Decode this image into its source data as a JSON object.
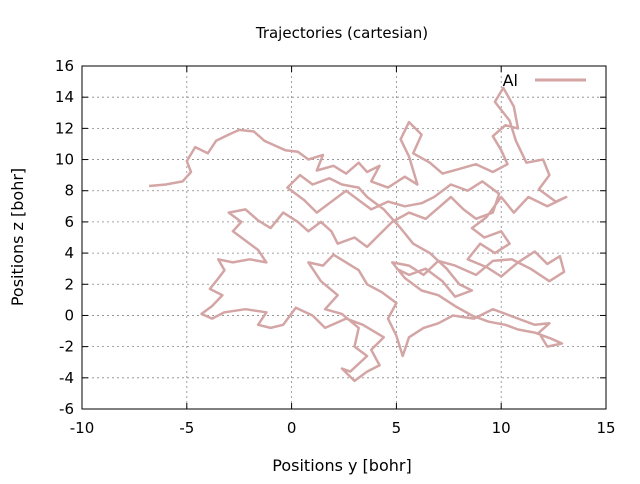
{
  "chart_data": {
    "type": "line",
    "title": "Trajectories (cartesian)",
    "xlabel": "Positions y [bohr]",
    "ylabel": "Positions z [bohr]",
    "xlim": [
      -10,
      15
    ],
    "ylim": [
      -6,
      16
    ],
    "xticks": [
      -10,
      -5,
      0,
      5,
      10,
      15
    ],
    "yticks": [
      -6,
      -4,
      -2,
      0,
      2,
      4,
      6,
      8,
      10,
      12,
      14,
      16
    ],
    "grid": true,
    "legend_position": "top-right",
    "series": [
      {
        "name": "Al",
        "color": "#d4a5a5",
        "points": [
          [
            -6.8,
            8.3
          ],
          [
            -6,
            8.4
          ],
          [
            -5.2,
            8.6
          ],
          [
            -4.8,
            9.2
          ],
          [
            -5,
            9.9
          ],
          [
            -4.6,
            10.8
          ],
          [
            -4,
            10.4
          ],
          [
            -3.6,
            11.2
          ],
          [
            -3,
            11.6
          ],
          [
            -2.5,
            11.9
          ],
          [
            -1.8,
            11.8
          ],
          [
            -1.3,
            11.2
          ],
          [
            -0.8,
            10.9
          ],
          [
            -0.3,
            10.6
          ],
          [
            0.3,
            10.5
          ],
          [
            0.8,
            10
          ],
          [
            1.5,
            10.3
          ],
          [
            1.2,
            9.3
          ],
          [
            2,
            9.6
          ],
          [
            2.6,
            9.1
          ],
          [
            3.2,
            9.8
          ],
          [
            3.6,
            9.2
          ],
          [
            4.2,
            9.6
          ],
          [
            3.8,
            8.6
          ],
          [
            4.6,
            8.2
          ],
          [
            5.4,
            8.9
          ],
          [
            6,
            8.4
          ],
          [
            5.6,
            10.2
          ],
          [
            5.2,
            11.3
          ],
          [
            5.6,
            12.4
          ],
          [
            6.2,
            11.6
          ],
          [
            5.8,
            10.4
          ],
          [
            6.6,
            9.8
          ],
          [
            7.2,
            9.1
          ],
          [
            8,
            9.4
          ],
          [
            8.8,
            9.7
          ],
          [
            9.6,
            9.2
          ],
          [
            10.3,
            9.7
          ],
          [
            10,
            10.6
          ],
          [
            9.6,
            11.5
          ],
          [
            10.2,
            12.2
          ],
          [
            10.8,
            12
          ],
          [
            10.6,
            13.4
          ],
          [
            10.1,
            14.6
          ],
          [
            9.7,
            13.7
          ],
          [
            10.4,
            12.5
          ],
          [
            10.7,
            11.2
          ],
          [
            11.2,
            9.8
          ],
          [
            12,
            10
          ],
          [
            12.3,
            9
          ],
          [
            11.8,
            8.1
          ],
          [
            12.6,
            7.3
          ],
          [
            13.1,
            7.6
          ],
          [
            12.2,
            7
          ],
          [
            11.3,
            7.6
          ],
          [
            10.6,
            6.6
          ],
          [
            10,
            7.6
          ],
          [
            9.3,
            6.3
          ],
          [
            8.6,
            5.6
          ],
          [
            9.2,
            5
          ],
          [
            10,
            5.4
          ],
          [
            10.4,
            4.6
          ],
          [
            9.7,
            4
          ],
          [
            9,
            4.6
          ],
          [
            8.4,
            3.6
          ],
          [
            9.3,
            3.1
          ],
          [
            10,
            2.5
          ],
          [
            10.8,
            3.4
          ],
          [
            11.6,
            4.1
          ],
          [
            12.2,
            3.3
          ],
          [
            12.8,
            3.8
          ],
          [
            13,
            2.8
          ],
          [
            12.3,
            2.2
          ],
          [
            11.4,
            3
          ],
          [
            10.5,
            3.6
          ],
          [
            9.6,
            3.5
          ],
          [
            8.8,
            2.6
          ],
          [
            7.8,
            3.2
          ],
          [
            7,
            3.5
          ],
          [
            6.3,
            2.6
          ],
          [
            5.6,
            3.2
          ],
          [
            4.8,
            3.4
          ],
          [
            5.4,
            2.4
          ],
          [
            6.2,
            1.6
          ],
          [
            7,
            1.3
          ],
          [
            7.8,
            0.6
          ],
          [
            8.6,
            0
          ],
          [
            9.4,
            -0.4
          ],
          [
            10.2,
            -0.6
          ],
          [
            10.8,
            -0.9
          ],
          [
            11.6,
            -1.1
          ],
          [
            12.4,
            -1.5
          ],
          [
            12.9,
            -1.8
          ],
          [
            12.2,
            -2
          ],
          [
            11.8,
            -1.1
          ],
          [
            12.3,
            -0.5
          ],
          [
            11.6,
            -0.6
          ],
          [
            10.6,
            -0.1
          ],
          [
            9.6,
            0.4
          ],
          [
            8.7,
            -0.2
          ],
          [
            7.7,
            0
          ],
          [
            7,
            -0.5
          ],
          [
            6.3,
            -0.8
          ],
          [
            5.6,
            -1.4
          ],
          [
            5.3,
            -2.6
          ],
          [
            5,
            -1.3
          ],
          [
            4.6,
            -0.2
          ],
          [
            5,
            0.8
          ],
          [
            4.3,
            1.5
          ],
          [
            3.6,
            2
          ],
          [
            3.2,
            2.9
          ],
          [
            2.6,
            3.4
          ],
          [
            2,
            3.9
          ],
          [
            1.5,
            3.2
          ],
          [
            0.8,
            3.4
          ],
          [
            1.4,
            2.2
          ],
          [
            2.2,
            1.3
          ],
          [
            1.6,
            0.4
          ],
          [
            2.4,
            0.1
          ],
          [
            3.2,
            -0.8
          ],
          [
            3,
            -2
          ],
          [
            3.6,
            -2.6
          ],
          [
            2.8,
            -3.6
          ],
          [
            2.4,
            -3.4
          ],
          [
            3,
            -4.2
          ],
          [
            3.6,
            -3.6
          ],
          [
            4.2,
            -3.2
          ],
          [
            3.8,
            -2.2
          ],
          [
            4.4,
            -1.4
          ],
          [
            3.4,
            -0.6
          ],
          [
            2.6,
            -0.2
          ],
          [
            1.6,
            -0.8
          ],
          [
            1,
            0
          ],
          [
            0.2,
            0.5
          ],
          [
            -0.4,
            -0.6
          ],
          [
            -1,
            -0.8
          ],
          [
            -1.6,
            -0.6
          ],
          [
            -1.2,
            0.2
          ],
          [
            -2.2,
            0.4
          ],
          [
            -3.2,
            0.2
          ],
          [
            -3.8,
            -0.2
          ],
          [
            -4.3,
            0.1
          ],
          [
            -3.8,
            0.6
          ],
          [
            -3.3,
            1.3
          ],
          [
            -3.9,
            1.7
          ],
          [
            -3.6,
            2.2
          ],
          [
            -3.2,
            2.9
          ],
          [
            -3.5,
            3.6
          ],
          [
            -2.8,
            3.4
          ],
          [
            -2,
            3.6
          ],
          [
            -1.2,
            3.4
          ],
          [
            -1.6,
            4.2
          ],
          [
            -2.2,
            4.8
          ],
          [
            -2.8,
            5.4
          ],
          [
            -2.4,
            6
          ],
          [
            -3,
            6.6
          ],
          [
            -2.2,
            6.8
          ],
          [
            -1.6,
            6.1
          ],
          [
            -1,
            5.6
          ],
          [
            -0.4,
            6.6
          ],
          [
            0.3,
            6
          ],
          [
            0.8,
            5.4
          ],
          [
            1.4,
            6
          ],
          [
            1.9,
            5.4
          ],
          [
            2.2,
            4.6
          ],
          [
            3,
            5
          ],
          [
            3.6,
            4.4
          ],
          [
            4.2,
            5.2
          ],
          [
            4.8,
            6
          ],
          [
            5.6,
            6.6
          ],
          [
            6.4,
            6.2
          ],
          [
            7,
            6.9
          ],
          [
            7.6,
            7.6
          ],
          [
            8.2,
            6.8
          ],
          [
            8.8,
            6.2
          ],
          [
            9.6,
            6.6
          ],
          [
            9.9,
            7.8
          ],
          [
            9.1,
            8.6
          ],
          [
            8.4,
            8
          ],
          [
            7.6,
            8.4
          ],
          [
            6.8,
            7.6
          ],
          [
            6.2,
            7.2
          ],
          [
            5.4,
            7
          ],
          [
            4.6,
            7.3
          ],
          [
            3.8,
            6.8
          ],
          [
            3.2,
            7.4
          ],
          [
            2.6,
            8
          ],
          [
            1.8,
            7.2
          ],
          [
            1.2,
            6.6
          ],
          [
            0.6,
            7.4
          ],
          [
            -0.2,
            8.2
          ],
          [
            0.4,
            9
          ],
          [
            1,
            8.4
          ],
          [
            1.8,
            8.8
          ],
          [
            2.4,
            8.4
          ],
          [
            3.2,
            8.2
          ],
          [
            3.6,
            7.6
          ],
          [
            4.4,
            6.8
          ],
          [
            5.2,
            5.6
          ],
          [
            5.8,
            4.6
          ],
          [
            6.6,
            4
          ],
          [
            7.4,
            3
          ],
          [
            8,
            2
          ],
          [
            8.6,
            1.6
          ],
          [
            7.8,
            1.2
          ],
          [
            7.2,
            2.2
          ],
          [
            6.4,
            3
          ],
          [
            5.6,
            2.6
          ],
          [
            5,
            3
          ]
        ]
      }
    ]
  }
}
